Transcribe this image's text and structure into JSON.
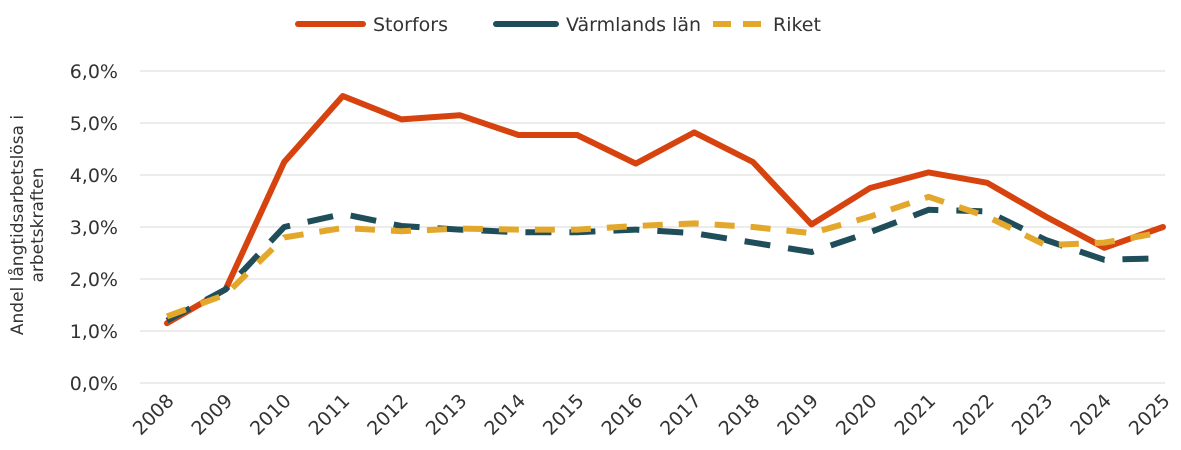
{
  "chart_data": {
    "type": "line",
    "ylabel": "Andel långtidsarbetslösa i arbetskraften",
    "categories": [
      "2008",
      "2009",
      "2010",
      "2011",
      "2012",
      "2013",
      "2014",
      "2015",
      "2016",
      "2017",
      "2018",
      "2019",
      "2020",
      "2021",
      "2022",
      "2023",
      "2024",
      "2025"
    ],
    "series": [
      {
        "name": "Storfors",
        "color": "#d6430f",
        "values": [
          1.15,
          1.8,
          4.25,
          5.52,
          5.07,
          5.15,
          4.77,
          4.77,
          4.22,
          4.82,
          4.25,
          3.05,
          3.75,
          4.05,
          3.85,
          3.2,
          2.6,
          3.0
        ]
      },
      {
        "name": "Värmlands län",
        "color": "#1f4e5a",
        "values": [
          1.2,
          1.8,
          3.0,
          3.25,
          3.02,
          2.95,
          2.9,
          2.9,
          2.95,
          2.88,
          2.7,
          2.52,
          2.9,
          3.33,
          3.3,
          2.75,
          2.37,
          2.4
        ]
      },
      {
        "name": "Riket",
        "color": "#e3a82b",
        "values": [
          1.28,
          1.7,
          2.8,
          2.98,
          2.92,
          2.97,
          2.95,
          2.95,
          3.02,
          3.07,
          3.0,
          2.88,
          3.2,
          3.58,
          3.2,
          2.65,
          2.7,
          2.9
        ]
      }
    ],
    "ylim": [
      0,
      6
    ],
    "yticks": [
      {
        "value": 0,
        "label": "0,0%"
      },
      {
        "value": 1,
        "label": "1,0%"
      },
      {
        "value": 2,
        "label": "2,0%"
      },
      {
        "value": 3,
        "label": "3,0%"
      },
      {
        "value": 4,
        "label": "4,0%"
      },
      {
        "value": 5,
        "label": "5,0%"
      },
      {
        "value": 6,
        "label": "6,0%"
      }
    ],
    "grid": true,
    "legend": "top"
  }
}
